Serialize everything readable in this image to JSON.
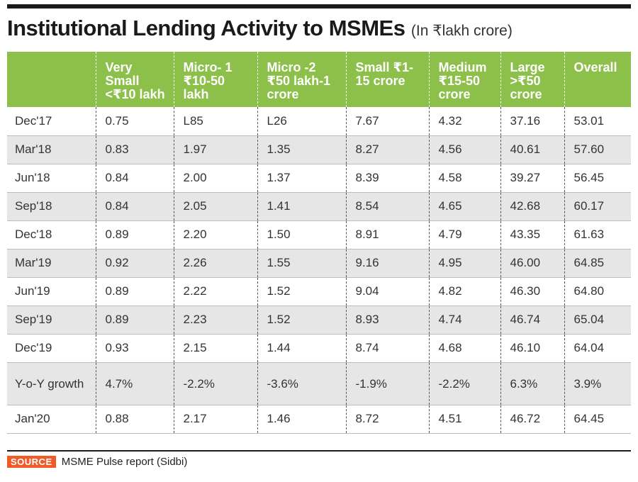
{
  "title": "Institutional Lending Activity to MSMEs",
  "subtitle": "(In ₹lakh crore)",
  "source": {
    "label": "SOURCE",
    "text": "MSME Pulse report (Sidbi)"
  },
  "chart_data": {
    "type": "table",
    "title": "Institutional Lending Activity to MSMEs",
    "subtitle": "(In ₹lakh crore)",
    "columns": [
      "",
      "Very Small <₹10 lakh",
      "Micro- 1 ₹10-50 lakh",
      "Micro -2 ₹50 lakh-1 crore",
      "Small ₹1-15 crore",
      "Medium ₹15-50 crore",
      "Large >₹50 crore",
      "Overall"
    ],
    "rows": [
      [
        "Dec'17",
        "0.75",
        "L85",
        "L26",
        "7.67",
        "4.32",
        "37.16",
        "53.01"
      ],
      [
        "Mar'18",
        "0.83",
        "1.97",
        "1.35",
        "8.27",
        "4.56",
        "40.61",
        "57.60"
      ],
      [
        "Jun'18",
        "0.84",
        "2.00",
        "1.37",
        "8.39",
        "4.58",
        "39.27",
        "56.45"
      ],
      [
        "Sep'18",
        "0.84",
        "2.05",
        "1.41",
        "8.54",
        "4.65",
        "42.68",
        "60.17"
      ],
      [
        "Dec'18",
        "0.89",
        "2.20",
        "1.50",
        "8.91",
        "4.79",
        "43.35",
        "61.63"
      ],
      [
        "Mar'19",
        "0.92",
        "2.26",
        "1.55",
        "9.16",
        "4.95",
        "46.00",
        "64.85"
      ],
      [
        "Jun'19",
        "0.89",
        "2.22",
        "1.52",
        "9.04",
        "4.82",
        "46.30",
        "64.80"
      ],
      [
        "Sep'19",
        "0.89",
        "2.23",
        "1.52",
        "8.93",
        "4.74",
        "46.74",
        "65.04"
      ],
      [
        "Dec'19",
        "0.93",
        "2.15",
        "1.44",
        "8.74",
        "4.68",
        "46.10",
        "64.04"
      ],
      [
        "Y-o-Y growth",
        "4.7%",
        "-2.2%",
        "-3.6%",
        "-1.9%",
        "-2.2%",
        "6.3%",
        "3.9%"
      ],
      [
        "Jan'20",
        "0.88",
        "2.17",
        "1.46",
        "8.72",
        "4.51",
        "46.72",
        "64.45"
      ]
    ]
  },
  "colors": {
    "header_bg": "#8cc04a",
    "stripe_bg": "#e6e6e6",
    "source_badge": "#f15a29"
  }
}
